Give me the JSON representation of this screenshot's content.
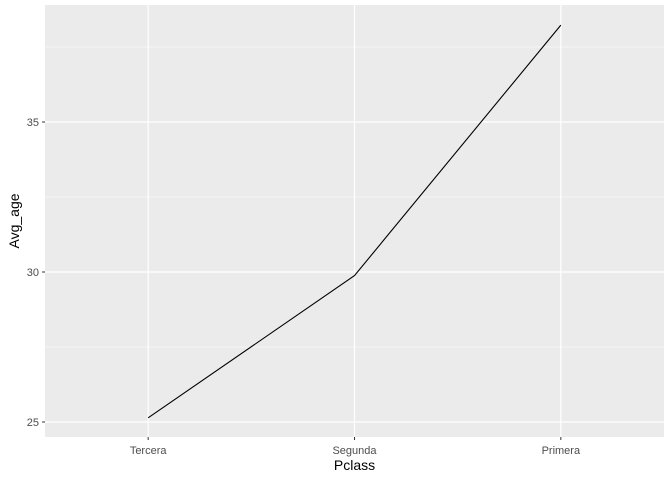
{
  "chart_data": {
    "type": "line",
    "categories": [
      "Tercera",
      "Segunda",
      "Primera"
    ],
    "series": [
      {
        "values": [
          25.14,
          29.88,
          38.23
        ]
      }
    ],
    "xlabel": "Pclass",
    "ylabel": "Avg_age",
    "ylim": [
      24.5,
      38.9
    ],
    "yticks": [
      25,
      30,
      35
    ],
    "grid": true,
    "legend": "none",
    "colors": {
      "panel_background": "#ebebeb",
      "grid_major": "#ffffff",
      "line": "#000000"
    }
  }
}
